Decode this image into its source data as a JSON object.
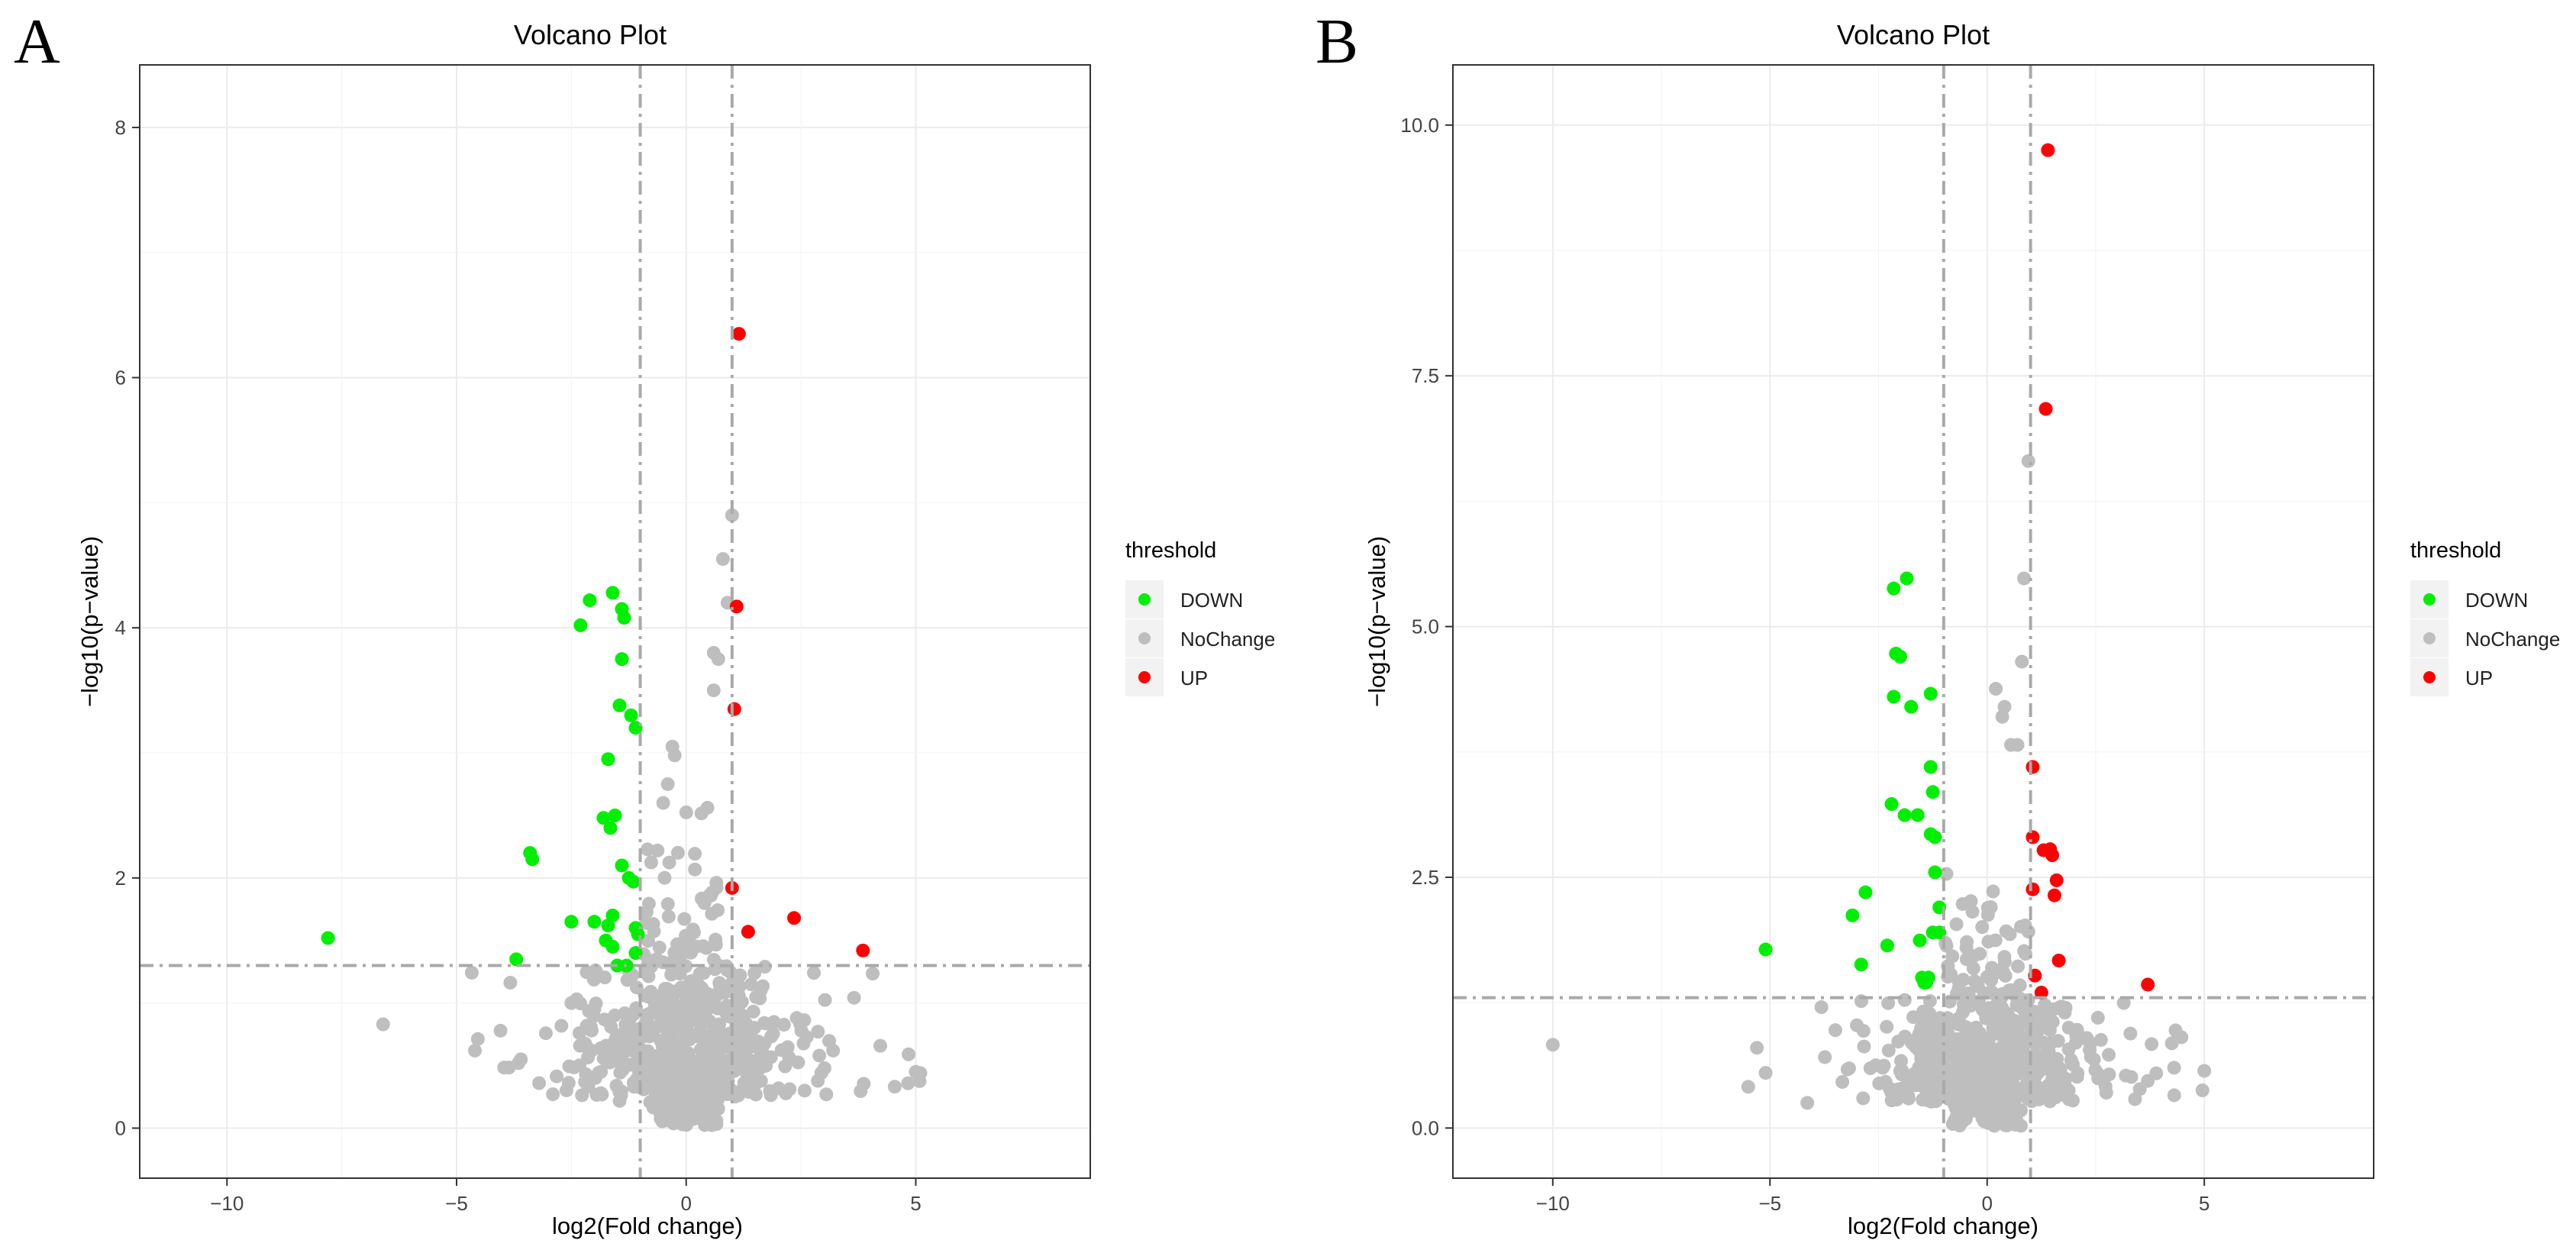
{
  "chart_data": [
    {
      "panel": "A",
      "type": "scatter",
      "title": "Volcano Plot",
      "xlabel": "log2(Fold change)",
      "ylabel": "−log10(p−value)",
      "xlim": [
        -11.9,
        8.8
      ],
      "ylim": [
        -0.4,
        8.5
      ],
      "xticks": [
        -10,
        -5,
        0,
        5
      ],
      "xtick_labels": [
        "−10",
        "−5",
        "0",
        "5"
      ],
      "yticks": [
        0,
        2,
        4,
        6,
        8
      ],
      "ytick_labels": [
        "0",
        "2",
        "4",
        "6",
        "8"
      ],
      "grid": true,
      "threshold_lines": {
        "x": [
          -1,
          1
        ],
        "y": 1.3
      },
      "legend": {
        "title": "threshold",
        "position": "right",
        "entries": [
          {
            "label": "DOWN",
            "color": "#00ee00"
          },
          {
            "label": "NoChange",
            "color": "#bebebe"
          },
          {
            "label": "UP",
            "color": "#ff0000"
          }
        ]
      },
      "nochange_seed": 7,
      "nochange_count": 650,
      "series": [
        {
          "name": "DOWN",
          "color": "#00ee00",
          "points": [
            [
              -7.8,
              1.52
            ],
            [
              -3.7,
              1.35
            ],
            [
              -3.4,
              2.2
            ],
            [
              -3.35,
              2.15
            ],
            [
              -2.5,
              1.65
            ],
            [
              -2.3,
              4.02
            ],
            [
              -2.1,
              4.22
            ],
            [
              -2.0,
              1.65
            ],
            [
              -1.8,
              2.48
            ],
            [
              -1.6,
              4.28
            ],
            [
              -1.7,
              2.95
            ],
            [
              -1.65,
              2.4
            ],
            [
              -1.55,
              2.5
            ],
            [
              -1.6,
              1.7
            ],
            [
              -1.7,
              1.62
            ],
            [
              -1.6,
              1.45
            ],
            [
              -1.5,
              1.3
            ],
            [
              -1.4,
              4.15
            ],
            [
              -1.35,
              4.08
            ],
            [
              -1.4,
              3.75
            ],
            [
              -1.45,
              3.38
            ],
            [
              -1.4,
              2.1
            ],
            [
              -1.25,
              2.0
            ],
            [
              -1.2,
              3.3
            ],
            [
              -1.1,
              3.2
            ],
            [
              -1.15,
              1.97
            ],
            [
              -1.1,
              1.6
            ],
            [
              -1.05,
              1.55
            ],
            [
              -1.3,
              1.3
            ],
            [
              -1.1,
              1.4
            ],
            [
              -1.75,
              1.5
            ]
          ]
        },
        {
          "name": "UP",
          "color": "#ff0000",
          "points": [
            [
              1.15,
              6.35
            ],
            [
              1.1,
              4.17
            ],
            [
              1.05,
              3.35
            ],
            [
              1.0,
              1.92
            ],
            [
              1.35,
              1.57
            ],
            [
              2.35,
              1.68
            ],
            [
              3.85,
              1.42
            ]
          ]
        },
        {
          "name": "NoChange",
          "color": "#bebebe",
          "points": [
            [
              1.0,
              4.9
            ],
            [
              0.8,
              4.55
            ],
            [
              0.9,
              4.2
            ],
            [
              0.7,
              3.75
            ],
            [
              0.6,
              3.8
            ],
            [
              0.6,
              3.5
            ],
            [
              -0.3,
              3.05
            ],
            [
              -0.25,
              2.98
            ],
            [
              -0.4,
              2.75
            ],
            [
              -0.5,
              2.6
            ],
            [
              -6.6,
              0.83
            ],
            [
              -4.6,
              0.62
            ],
            [
              -3.6,
              0.55
            ],
            [
              -3.65,
              0.52
            ],
            [
              5.0,
              0.45
            ],
            [
              5.1,
              0.44
            ],
            [
              3.2,
              0.62
            ],
            [
              2.9,
              0.58
            ],
            [
              -2.5,
              1.0
            ],
            [
              -2.0,
              0.95
            ]
          ]
        }
      ]
    },
    {
      "panel": "B",
      "type": "scatter",
      "title": "Volcano Plot",
      "xlabel": "log2(Fold change)",
      "ylabel": "−log10(p−value)",
      "xlim": [
        -12.3,
        8.9
      ],
      "ylim": [
        -0.5,
        10.6
      ],
      "xticks": [
        -10,
        -5,
        0,
        5
      ],
      "xtick_labels": [
        "−10",
        "−5",
        "0",
        "5"
      ],
      "yticks": [
        0,
        2.5,
        5.0,
        7.5,
        10.0
      ],
      "ytick_labels": [
        "0.0",
        "2.5",
        "5.0",
        "7.5",
        "10.0"
      ],
      "grid": true,
      "threshold_lines": {
        "x": [
          -1,
          1
        ],
        "y": 1.3
      },
      "legend": {
        "title": "threshold",
        "position": "right",
        "entries": [
          {
            "label": "DOWN",
            "color": "#00ee00"
          },
          {
            "label": "NoChange",
            "color": "#bebebe"
          },
          {
            "label": "UP",
            "color": "#ff0000"
          }
        ]
      },
      "nochange_seed": 19,
      "nochange_count": 650,
      "series": [
        {
          "name": "DOWN",
          "color": "#00ee00",
          "points": [
            [
              -5.1,
              1.78
            ],
            [
              -3.1,
              2.12
            ],
            [
              -2.9,
              1.63
            ],
            [
              -2.8,
              2.35
            ],
            [
              -2.3,
              1.82
            ],
            [
              -2.2,
              3.23
            ],
            [
              -2.15,
              4.3
            ],
            [
              -2.1,
              4.73
            ],
            [
              -2.15,
              5.38
            ],
            [
              -1.85,
              5.48
            ],
            [
              -1.9,
              3.12
            ],
            [
              -1.75,
              4.2
            ],
            [
              -1.6,
              3.12
            ],
            [
              -1.55,
              1.87
            ],
            [
              -1.5,
              1.5
            ],
            [
              -1.45,
              1.45
            ],
            [
              -1.4,
              1.45
            ],
            [
              -1.3,
              3.6
            ],
            [
              -1.3,
              2.93
            ],
            [
              -1.25,
              1.95
            ],
            [
              -1.2,
              2.55
            ],
            [
              -1.2,
              2.9
            ],
            [
              -1.1,
              2.2
            ],
            [
              -1.1,
              1.95
            ],
            [
              -1.3,
              4.33
            ],
            [
              -1.25,
              3.35
            ],
            [
              -1.35,
              1.5
            ],
            [
              -2.0,
              4.7
            ]
          ]
        },
        {
          "name": "UP",
          "color": "#ff0000",
          "points": [
            [
              1.4,
              9.75
            ],
            [
              1.35,
              7.17
            ],
            [
              1.05,
              3.6
            ],
            [
              1.05,
              2.9
            ],
            [
              1.3,
              2.77
            ],
            [
              1.45,
              2.78
            ],
            [
              1.5,
              2.72
            ],
            [
              1.6,
              2.47
            ],
            [
              1.55,
              2.32
            ],
            [
              1.05,
              2.38
            ],
            [
              1.65,
              1.67
            ],
            [
              1.1,
              1.52
            ],
            [
              1.25,
              1.35
            ],
            [
              3.7,
              1.43
            ]
          ]
        },
        {
          "name": "NoChange",
          "color": "#bebebe",
          "points": [
            [
              0.95,
              6.65
            ],
            [
              0.85,
              5.48
            ],
            [
              0.8,
              4.65
            ],
            [
              0.4,
              4.2
            ],
            [
              0.35,
              4.1
            ],
            [
              0.2,
              4.38
            ],
            [
              0.55,
              3.82
            ],
            [
              0.7,
              3.82
            ],
            [
              -10.0,
              0.83
            ],
            [
              5.0,
              0.57
            ],
            [
              3.7,
              0.47
            ],
            [
              -5.3,
              0.8
            ],
            [
              -5.1,
              0.55
            ],
            [
              2.8,
              0.73
            ]
          ]
        }
      ]
    }
  ]
}
